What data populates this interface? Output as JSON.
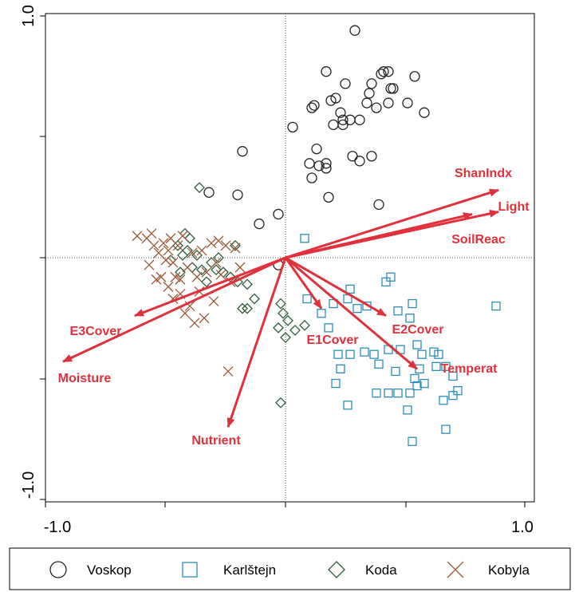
{
  "colors": {
    "voskop": "#222222",
    "karlstejn": "#2b8fb5",
    "koda": "#2f5f3a",
    "kobyla": "#9a5a35",
    "arrow": "#e0303a",
    "frame": "#000000"
  },
  "chart_data": {
    "type": "scatter",
    "title": "",
    "xlabel": "",
    "ylabel": "",
    "xlim": [
      -1.0,
      1.0
    ],
    "ylim": [
      -1.0,
      1.0
    ],
    "x_ticks": [
      -1.0,
      1.0
    ],
    "y_ticks": [
      -1.0,
      1.0
    ],
    "x_tick_labels": [
      "-1.0",
      "1.0"
    ],
    "y_tick_labels": [
      "-1.0",
      "1.0"
    ],
    "grid": false,
    "reference_lines": [
      0,
      0
    ],
    "legend_placement": "bottom",
    "series": [
      {
        "name": "Voskop",
        "marker": "circle",
        "color": "#222222",
        "points": [
          [
            0.29,
            0.94
          ],
          [
            0.17,
            0.77
          ],
          [
            0.25,
            0.72
          ],
          [
            0.36,
            0.72
          ],
          [
            0.4,
            0.76
          ],
          [
            0.41,
            0.77
          ],
          [
            0.43,
            0.77
          ],
          [
            0.44,
            0.7
          ],
          [
            0.45,
            0.7
          ],
          [
            0.54,
            0.75
          ],
          [
            0.35,
            0.68
          ],
          [
            0.38,
            0.62
          ],
          [
            0.12,
            0.63
          ],
          [
            0.11,
            0.62
          ],
          [
            0.19,
            0.65
          ],
          [
            0.21,
            0.66
          ],
          [
            0.23,
            0.6
          ],
          [
            0.24,
            0.57
          ],
          [
            0.27,
            0.57
          ],
          [
            0.31,
            0.57
          ],
          [
            0.34,
            0.64
          ],
          [
            0.43,
            0.64
          ],
          [
            0.51,
            0.64
          ],
          [
            0.58,
            0.6
          ],
          [
            0.24,
            0.55
          ],
          [
            0.2,
            0.55
          ],
          [
            0.03,
            0.54
          ],
          [
            0.13,
            0.45
          ],
          [
            0.17,
            0.39
          ],
          [
            0.36,
            0.42
          ],
          [
            0.28,
            0.42
          ],
          [
            0.31,
            0.4
          ],
          [
            0.1,
            0.39
          ],
          [
            0.14,
            0.38
          ],
          [
            0.17,
            0.37
          ],
          [
            0.11,
            0.33
          ],
          [
            0.18,
            0.25
          ],
          [
            0.39,
            0.22
          ],
          [
            -0.18,
            0.44
          ],
          [
            -0.32,
            0.27
          ],
          [
            -0.2,
            0.26
          ],
          [
            -0.03,
            0.18
          ],
          [
            -0.11,
            0.14
          ],
          [
            -0.03,
            -0.03
          ]
        ]
      },
      {
        "name": "Karlštejn",
        "marker": "square",
        "color": "#2b8fb5",
        "points": [
          [
            0.08,
            0.08
          ],
          [
            0.88,
            -0.2
          ],
          [
            0.09,
            -0.17
          ],
          [
            0.2,
            -0.19
          ],
          [
            0.26,
            -0.17
          ],
          [
            0.3,
            -0.21
          ],
          [
            0.44,
            -0.08
          ],
          [
            0.53,
            -0.19
          ],
          [
            0.52,
            -0.25
          ],
          [
            0.42,
            -0.1
          ],
          [
            0.15,
            -0.23
          ],
          [
            0.27,
            -0.13
          ],
          [
            0.18,
            -0.29
          ],
          [
            0.37,
            -0.4
          ],
          [
            0.43,
            -0.38
          ],
          [
            0.48,
            -0.38
          ],
          [
            0.55,
            -0.36
          ],
          [
            0.57,
            -0.4
          ],
          [
            0.62,
            -0.39
          ],
          [
            0.64,
            -0.4
          ],
          [
            0.39,
            -0.44
          ],
          [
            0.46,
            -0.47
          ],
          [
            0.56,
            -0.46
          ],
          [
            0.63,
            -0.45
          ],
          [
            0.67,
            -0.45
          ],
          [
            0.7,
            -0.49
          ],
          [
            0.55,
            -0.53
          ],
          [
            0.72,
            -0.55
          ],
          [
            0.58,
            -0.52
          ],
          [
            0.22,
            -0.4
          ],
          [
            0.27,
            -0.4
          ],
          [
            0.33,
            -0.39
          ],
          [
            0.23,
            -0.46
          ],
          [
            0.21,
            -0.52
          ],
          [
            0.38,
            -0.56
          ],
          [
            0.43,
            -0.56
          ],
          [
            0.47,
            -0.56
          ],
          [
            0.52,
            -0.56
          ],
          [
            0.54,
            -0.5
          ],
          [
            0.66,
            -0.59
          ],
          [
            0.7,
            -0.57
          ],
          [
            0.51,
            -0.63
          ],
          [
            0.26,
            -0.61
          ],
          [
            0.53,
            -0.76
          ],
          [
            0.67,
            -0.71
          ],
          [
            0.34,
            -0.2
          ],
          [
            0.47,
            -0.22
          ]
        ]
      },
      {
        "name": "Koda",
        "marker": "diamond",
        "color": "#2f5f3a",
        "points": [
          [
            -0.36,
            0.29
          ],
          [
            -0.4,
            0.08
          ],
          [
            -0.42,
            0.1
          ],
          [
            -0.45,
            0.05
          ],
          [
            -0.43,
            0.01
          ],
          [
            -0.41,
            0.03
          ],
          [
            -0.39,
            -0.04
          ],
          [
            -0.37,
            0.01
          ],
          [
            -0.35,
            -0.05
          ],
          [
            -0.33,
            -0.1
          ],
          [
            -0.29,
            -0.05
          ],
          [
            -0.26,
            -0.06
          ],
          [
            -0.23,
            -0.08
          ],
          [
            -0.21,
            0.05
          ],
          [
            -0.2,
            -0.1
          ],
          [
            -0.16,
            -0.11
          ],
          [
            -0.13,
            -0.17
          ],
          [
            -0.16,
            -0.21
          ],
          [
            -0.02,
            -0.19
          ],
          [
            -0.01,
            -0.23
          ],
          [
            0.01,
            -0.26
          ],
          [
            -0.03,
            -0.29
          ],
          [
            0.0,
            -0.33
          ],
          [
            0.04,
            -0.3
          ],
          [
            0.08,
            -0.28
          ],
          [
            -0.18,
            -0.21
          ],
          [
            -0.02,
            -0.6
          ],
          [
            -0.44,
            -0.06
          ],
          [
            -0.48,
            -0.01
          ],
          [
            -0.31,
            -0.02
          ],
          [
            -0.28,
            0.0
          ]
        ]
      },
      {
        "name": "Kobyla",
        "marker": "x",
        "color": "#9a5a35",
        "points": [
          [
            -0.62,
            0.09
          ],
          [
            -0.58,
            0.08
          ],
          [
            -0.55,
            0.05
          ],
          [
            -0.53,
            0.02
          ],
          [
            -0.51,
            0.06
          ],
          [
            -0.49,
            0.03
          ],
          [
            -0.47,
            -0.02
          ],
          [
            -0.45,
            0.05
          ],
          [
            -0.43,
            0.09
          ],
          [
            -0.41,
            -0.04
          ],
          [
            -0.39,
            0.02
          ],
          [
            -0.37,
            -0.08
          ],
          [
            -0.35,
            0.03
          ],
          [
            -0.33,
            -0.06
          ],
          [
            -0.31,
            0.06
          ],
          [
            -0.29,
            -0.02
          ],
          [
            -0.27,
            -0.07
          ],
          [
            -0.25,
            0.05
          ],
          [
            -0.23,
            -0.1
          ],
          [
            -0.21,
            0.04
          ],
          [
            -0.19,
            -0.04
          ],
          [
            -0.57,
            -0.03
          ],
          [
            -0.54,
            -0.09
          ],
          [
            -0.52,
            -0.08
          ],
          [
            -0.49,
            -0.12
          ],
          [
            -0.47,
            -0.17
          ],
          [
            -0.44,
            -0.15
          ],
          [
            -0.42,
            -0.23
          ],
          [
            -0.4,
            -0.2
          ],
          [
            -0.38,
            -0.27
          ],
          [
            -0.34,
            -0.25
          ],
          [
            -0.3,
            -0.18
          ],
          [
            -0.56,
            0.1
          ],
          [
            -0.48,
            0.08
          ],
          [
            -0.46,
            -0.08
          ],
          [
            -0.24,
            -0.47
          ],
          [
            -0.28,
            0.07
          ],
          [
            -0.36,
            -0.14
          ],
          [
            -0.44,
            -0.09
          ],
          [
            -0.5,
            -0.01
          ]
        ]
      }
    ],
    "vectors": [
      {
        "label": "ShanIndx",
        "x": 0.89,
        "y": 0.28
      },
      {
        "label": "Light",
        "x": 0.89,
        "y": 0.19
      },
      {
        "label": "SoilReac",
        "x": 0.78,
        "y": 0.18
      },
      {
        "label": "E3Cover",
        "x": -0.63,
        "y": -0.24
      },
      {
        "label": "Moisture",
        "x": -0.93,
        "y": -0.43
      },
      {
        "label": "Nutrient",
        "x": -0.24,
        "y": -0.7
      },
      {
        "label": "E1Cover",
        "x": 0.15,
        "y": -0.21
      },
      {
        "label": "E2Cover",
        "x": 0.42,
        "y": -0.24
      },
      {
        "label": "Temperat",
        "x": 0.55,
        "y": -0.46
      }
    ]
  }
}
